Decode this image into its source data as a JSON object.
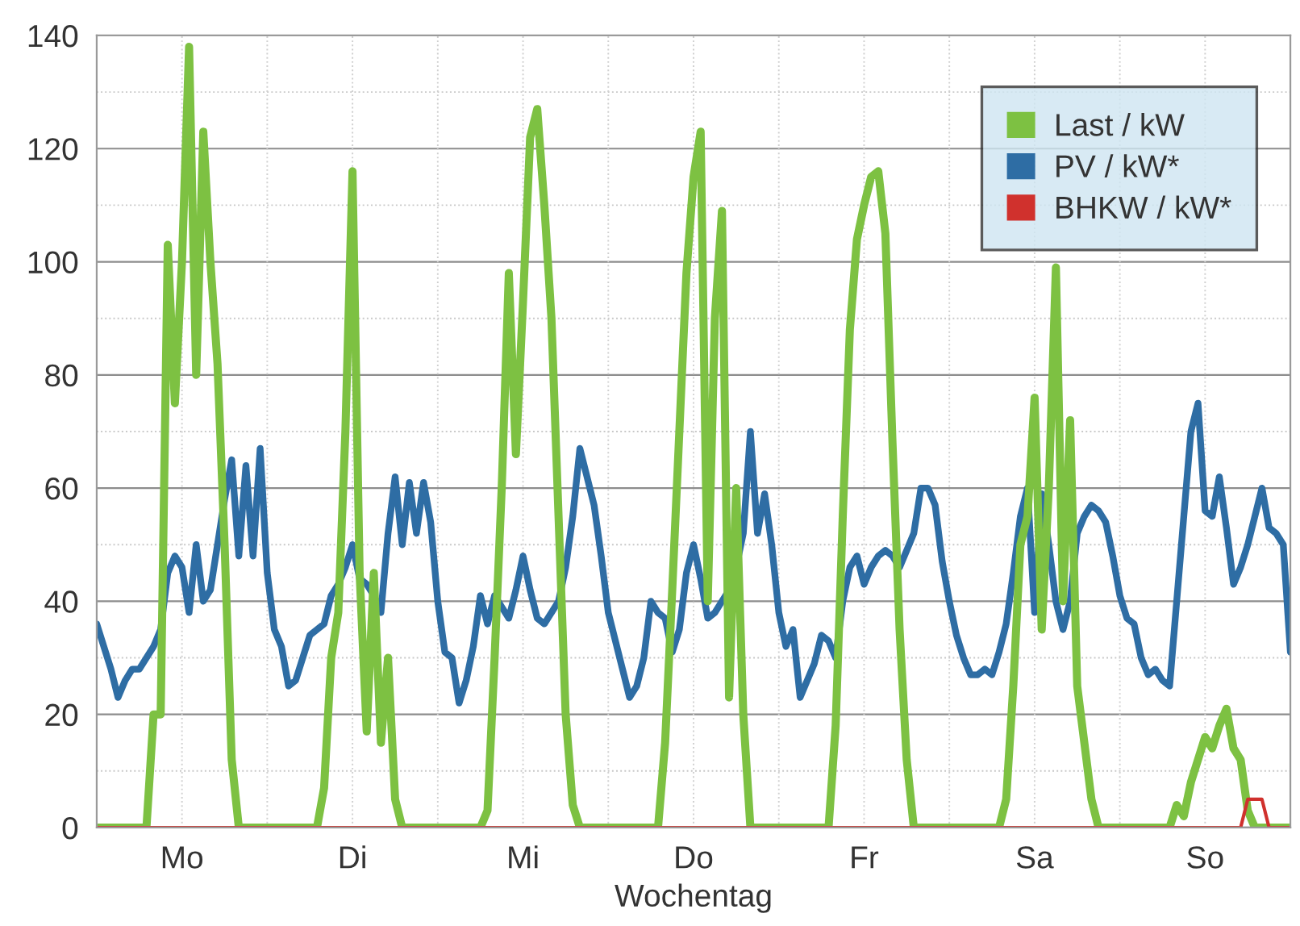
{
  "chart_data": {
    "type": "line",
    "xlabel": "Wochentag",
    "categories": [
      null,
      null,
      null,
      null,
      null,
      null,
      null,
      null,
      null,
      null,
      null,
      null,
      "Mo",
      null,
      null,
      null,
      null,
      null,
      null,
      null,
      null,
      null,
      null,
      null,
      null,
      null,
      null,
      null,
      null,
      null,
      null,
      null,
      null,
      null,
      null,
      null,
      "Di",
      null,
      null,
      null,
      null,
      null,
      null,
      null,
      null,
      null,
      null,
      null,
      null,
      null,
      null,
      null,
      null,
      null,
      null,
      null,
      null,
      null,
      null,
      null,
      "Mi",
      null,
      null,
      null,
      null,
      null,
      null,
      null,
      null,
      null,
      null,
      null,
      null,
      null,
      null,
      null,
      null,
      null,
      null,
      null,
      null,
      null,
      null,
      null,
      "Do",
      null,
      null,
      null,
      null,
      null,
      null,
      null,
      null,
      null,
      null,
      null,
      null,
      null,
      null,
      null,
      null,
      null,
      null,
      null,
      null,
      null,
      null,
      null,
      "Fr",
      null,
      null,
      null,
      null,
      null,
      null,
      null,
      null,
      null,
      null,
      null,
      null,
      null,
      null,
      null,
      null,
      null,
      null,
      null,
      null,
      null,
      null,
      null,
      "Sa",
      null,
      null,
      null,
      null,
      null,
      null,
      null,
      null,
      null,
      null,
      null,
      null,
      null,
      null,
      null,
      null,
      null,
      null,
      null,
      null,
      null,
      null,
      null,
      "So",
      null,
      null,
      null,
      null,
      null,
      null,
      null,
      null,
      null,
      null,
      null,
      null
    ],
    "ylim": [
      0,
      140
    ],
    "yticks": [
      0,
      {
        "value": 10,
        "label": null
      },
      20,
      {
        "value": 30,
        "label": null
      },
      40,
      {
        "value": 50,
        "label": null
      },
      60,
      {
        "value": 70,
        "label": null
      },
      80,
      {
        "value": 90,
        "label": null
      },
      100,
      {
        "value": 110,
        "label": null
      },
      120,
      {
        "value": 130,
        "label": null
      },
      140
    ],
    "grid": true,
    "legend": "top right",
    "marker": "none",
    "line_style": "solid",
    "series": [
      {
        "name": "PV / kW*",
        "color": "#2e6da4",
        "values": [
          36,
          32,
          28,
          23,
          26,
          28,
          28,
          30,
          32,
          35,
          45,
          48,
          46,
          38,
          50,
          40,
          42,
          50,
          58,
          65,
          48,
          64,
          48,
          67,
          45,
          35,
          32,
          25,
          26,
          30,
          34,
          35,
          36,
          41,
          43,
          46,
          50,
          44,
          43,
          41,
          38,
          52,
          62,
          50,
          61,
          52,
          61,
          54,
          40,
          31,
          30,
          22,
          26,
          32,
          41,
          36,
          41,
          39,
          37,
          42,
          48,
          42,
          37,
          36,
          38,
          40,
          46,
          55,
          67,
          62,
          57,
          48,
          38,
          33,
          28,
          23,
          25,
          30,
          40,
          38,
          37,
          31,
          35,
          45,
          50,
          44,
          37,
          38,
          40,
          42,
          46,
          52,
          70,
          52,
          59,
          50,
          38,
          32,
          35,
          23,
          26,
          29,
          34,
          33,
          30,
          40,
          46,
          48,
          43,
          46,
          48,
          49,
          48,
          46,
          49,
          52,
          60,
          60,
          57,
          47,
          40,
          34,
          30,
          27,
          27,
          28,
          27,
          31,
          36,
          45,
          55,
          60,
          38,
          59,
          50,
          40,
          35,
          40,
          52,
          55,
          57,
          56,
          54,
          48,
          41,
          37,
          36,
          30,
          27,
          28,
          26,
          25,
          40,
          55,
          70,
          75,
          56,
          55,
          62,
          53,
          43,
          46,
          50,
          55,
          60,
          53,
          52,
          50,
          31
        ]
      },
      {
        "name": "Last / kW",
        "color": "#7dc142",
        "values": [
          0,
          0,
          0,
          0,
          0,
          0,
          0,
          0,
          20,
          20,
          103,
          75,
          100,
          138,
          80,
          123,
          100,
          82,
          50,
          12,
          0,
          0,
          0,
          0,
          0,
          0,
          0,
          0,
          0,
          0,
          0,
          0,
          7,
          30,
          38,
          70,
          116,
          45,
          17,
          45,
          15,
          30,
          5,
          0,
          0,
          0,
          0,
          0,
          0,
          0,
          0,
          0,
          0,
          0,
          0,
          3,
          30,
          60,
          98,
          66,
          93,
          122,
          127,
          110,
          90,
          55,
          20,
          4,
          0,
          0,
          0,
          0,
          0,
          0,
          0,
          0,
          0,
          0,
          0,
          0,
          15,
          42,
          70,
          98,
          115,
          123,
          40,
          90,
          109,
          23,
          60,
          20,
          0,
          0,
          0,
          0,
          0,
          0,
          0,
          0,
          0,
          0,
          0,
          0,
          18,
          55,
          88,
          104,
          110,
          115,
          116,
          105,
          68,
          35,
          12,
          0,
          0,
          0,
          0,
          0,
          0,
          0,
          0,
          0,
          0,
          0,
          0,
          0,
          5,
          25,
          50,
          55,
          76,
          35,
          60,
          99,
          40,
          72,
          25,
          15,
          5,
          0,
          0,
          0,
          0,
          0,
          0,
          0,
          0,
          0,
          0,
          0,
          4,
          2,
          8,
          12,
          16,
          14,
          18,
          21,
          14,
          12,
          3,
          0,
          0,
          0,
          0,
          0,
          0
        ]
      },
      {
        "name": "BHKW / kW*",
        "color": "#d0312d",
        "values": [
          0,
          0,
          0,
          0,
          0,
          0,
          0,
          0,
          0,
          0,
          0,
          0,
          0,
          0,
          0,
          0,
          0,
          0,
          0,
          0,
          0,
          0,
          0,
          0,
          0,
          0,
          0,
          0,
          0,
          0,
          0,
          0,
          0,
          0,
          0,
          0,
          0,
          0,
          0,
          0,
          0,
          0,
          0,
          0,
          0,
          0,
          0,
          0,
          0,
          0,
          0,
          0,
          0,
          0,
          0,
          0,
          0,
          0,
          0,
          0,
          0,
          0,
          0,
          0,
          0,
          0,
          0,
          0,
          0,
          0,
          0,
          0,
          0,
          0,
          0,
          0,
          0,
          0,
          0,
          0,
          0,
          0,
          0,
          0,
          0,
          0,
          0,
          0,
          0,
          0,
          0,
          0,
          0,
          0,
          0,
          0,
          0,
          0,
          0,
          0,
          0,
          0,
          0,
          0,
          0,
          0,
          0,
          0,
          0,
          0,
          0,
          0,
          0,
          0,
          0,
          0,
          0,
          0,
          0,
          0,
          0,
          0,
          0,
          0,
          0,
          0,
          0,
          0,
          0,
          0,
          0,
          0,
          0,
          0,
          0,
          0,
          0,
          0,
          0,
          0,
          0,
          0,
          0,
          0,
          0,
          0,
          0,
          0,
          0,
          0,
          0,
          0,
          0,
          0,
          0,
          0,
          0,
          0,
          0,
          0,
          0,
          0,
          5,
          5,
          5,
          0,
          0,
          0,
          0
        ]
      }
    ]
  }
}
